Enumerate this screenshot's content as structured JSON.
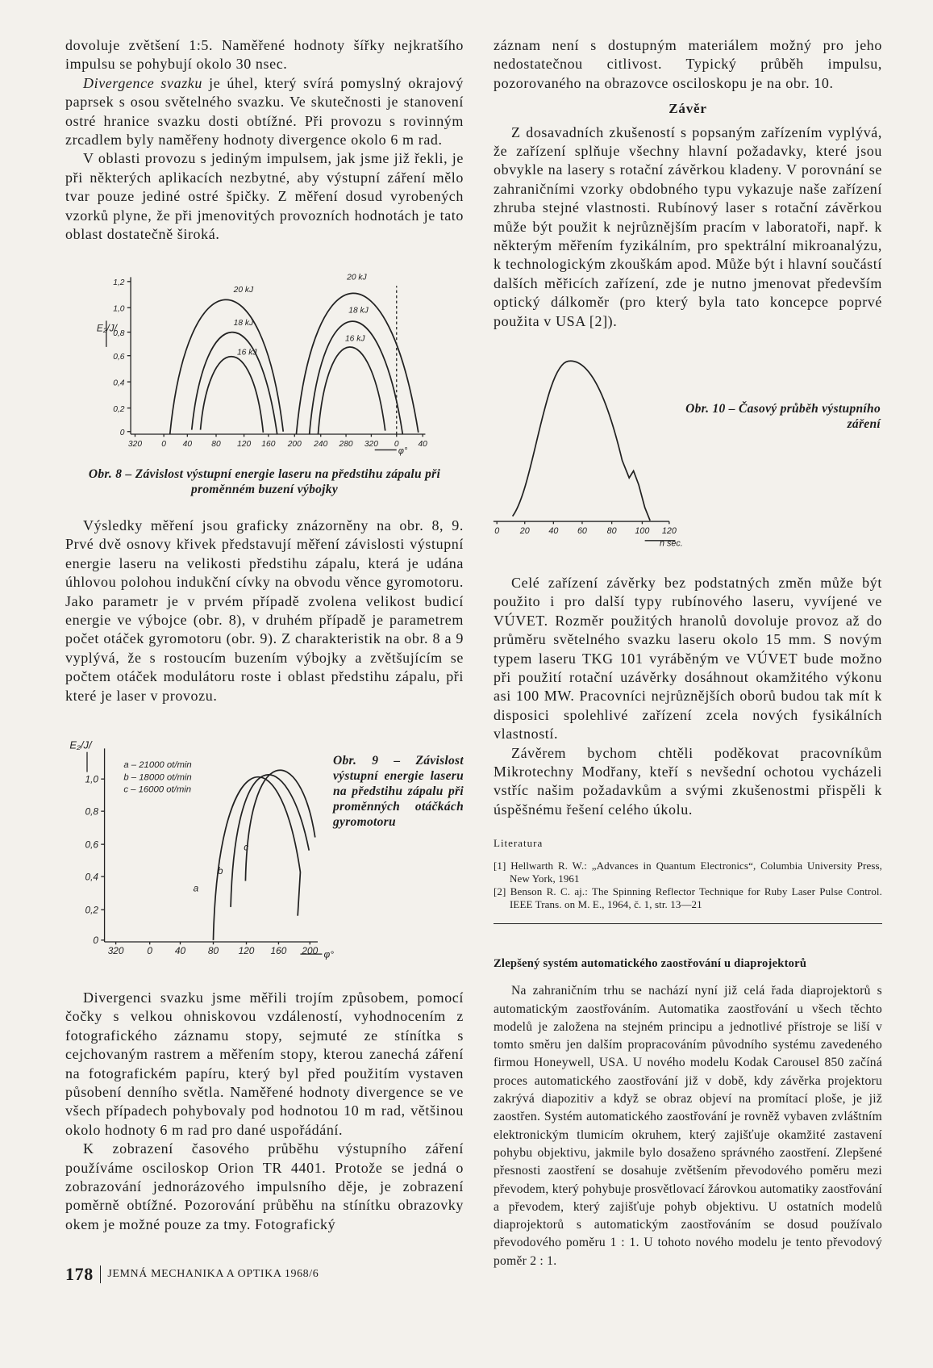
{
  "left": {
    "p1": "dovoluje zvětšení 1:5. Naměřené hodnoty šířky nejkratšího impulsu se pohybují okolo 30 nsec.",
    "p2_lead": "Divergence svazku",
    "p2": " je úhel, který svírá pomyslný okrajový paprsek s osou světelného svazku. Ve skutečnosti je stanovení ostré hranice svazku dosti obtížné. Při provozu s rovinným zrcadlem byly naměřeny hodnoty divergence okolo 6 m rad.",
    "p3": "V oblasti provozu s jediným impulsem, jak jsme již řekli, je při některých aplikacích nezbytné, aby výstupní záření mělo tvar pouze jediné ostré špičky. Z měření dosud vyrobených vzorků plyne, že při jmenovitých provozních hodnotách je tato oblast dostatečně široká.",
    "p4": "Výsledky měření jsou graficky znázorněny na obr. 8, 9. Prvé dvě osnovy křivek představují měření závislosti výstupní energie laseru na velikosti předstihu zápalu, která je udána úhlovou polohou indukční cívky na obvodu věnce gyromotoru. Jako parametr je v prvém případě zvolena velikost budicí energie ve výbojce (obr. 8), v druhém případě je parametrem počet otáček gyromotoru (obr. 9). Z charakteristik na obr. 8 a 9 vyplývá, že s rostoucím buzením výbojky a zvětšujícím se počtem otáček modulátoru roste i oblast předstihu zápalu, při které je laser v provozu.",
    "p5": "Divergenci svazku jsme měřili trojím způsobem, pomocí čočky s velkou ohniskovou vzdáleností, vyhodnocením z fotografického záznamu stopy, sejmuté ze stínítka s cejchovaným rastrem a měřením stopy, kterou zanechá záření na fotografickém papíru, který byl před použitím vystaven působení denního světla. Naměřené hodnoty divergence se ve všech případech pohybovaly pod hodnotou 10 m rad, většinou okolo hodnoty 6 m rad pro dané uspořádání.",
    "p6": "K zobrazení časového průběhu výstupního záření používáme osciloskop Orion TR 4401. Protože se jedná o zobrazování jednorázového impulsního děje, je zobrazení poměrně obtížné. Pozorování průběhu na stínítku obrazovky okem je možné pouze za tmy. Fotografický"
  },
  "figure_8": {
    "caption": "Obr. 8 – Závislost výstupní energie laseru na předstihu zápalu při proměnném buzení výbojky",
    "y_label": "E₂/J/",
    "x_label": "φ°",
    "y_ticks": [
      "0",
      "0,2",
      "0,4",
      "0,6",
      "0,8",
      "1,0",
      "1,2"
    ],
    "x_ticks": [
      "320",
      "0",
      "40",
      "80",
      "120",
      "160",
      "200",
      "240",
      "280",
      "320",
      "0",
      "40"
    ],
    "curve_labels": [
      "20 kJ",
      "18 kJ",
      "16 kJ",
      "20 kJ",
      "18 kJ",
      "16 kJ"
    ]
  },
  "figure_9": {
    "caption": "Obr. 9 – Závislost výstupní energie laseru na předstihu zápalu při proměnných otáčkách gyromotoru",
    "y_label": "E₂/J/",
    "x_label": "φ°",
    "y_ticks": [
      "0",
      "0,2",
      "0,4",
      "0,6",
      "0,8",
      "1,0"
    ],
    "x_ticks": [
      "320",
      "0",
      "40",
      "80",
      "120",
      "160",
      "200"
    ],
    "legend": [
      "a – 21000 ot/min",
      "b – 18000 ot/min",
      "c – 16000 ot/min"
    ],
    "curve_labels": [
      "a",
      "b",
      "c"
    ]
  },
  "figure_10": {
    "caption": "Obr. 10 – Časový průběh výstupního záření",
    "x_label": "n sec.",
    "x_ticks": [
      "0",
      "20",
      "40",
      "60",
      "80",
      "100",
      "120"
    ]
  },
  "right": {
    "p1": "záznam není s dostupným materiálem možný pro jeho nedostatečnou citlivost. Typický průběh impulsu, pozorovaného na obrazovce osciloskopu je na obr. 10.",
    "heading": "Závěr",
    "p2": "Z dosavadních zkušeností s popsaným zařízením vyplývá, že zařízení splňuje všechny hlavní požadavky, které jsou obvykle na lasery s rotační závěrkou kladeny. V porovnání se zahraničními vzorky obdobného typu vykazuje naše zařízení zhruba stejné vlastnosti. Rubínový laser s rotační závěrkou může být použit k nejrůznějším pracím v laboratoři, např. k některým měřením fyzikálním, pro spektrální mikroanalýzu, k technologickým zkouškám apod. Může být i hlavní součástí dalších měřicích zařízení, zde je nutno jmenovat především optický dálkoměr (pro který byla tato koncepce poprvé použita v USA [2]).",
    "p3": "Celé zařízení závěrky bez podstatných změn může být použito i pro další typy rubínového laseru, vyvíjené ve VÚVET. Rozměr použitých hranolů dovoluje provoz až do průměru světelného svazku laseru okolo 15 mm. S novým typem laseru TKG 101 vyráběným ve VÚVET bude možno při použití rotační uzávěrky dosáhnout okamžitého výkonu asi 100 MW. Pracovníci nejrůznějších oborů budou tak mít k disposici spolehlivé zařízení zcela nových fysikálních vlastností.",
    "p4": "Závěrem bychom chtěli poděkovat pracovníkům Mikrotechny Modřany, kteří s nevšední ochotou vycházeli vstříc našim požadavkům a svými zkušenostmi přispěli k úspěšnému řešení celého úkolu.",
    "references_title": "Literatura",
    "references": [
      "[1] Hellwarth R. W.: „Advances in Quantum Electronics“, Columbia University Press, New York, 1961",
      "[2] Benson R. C. aj.: The Spinning Reflector Technique for Ruby Laser Pulse Control. IEEE Trans. on M. E., 1964, č. 1, str. 13—21"
    ]
  },
  "article": {
    "title": "Zlepšený systém automatického zaostřování u diaprojektorů",
    "body": "Na zahraničním trhu se nachází nyní již celá řada diaprojektorů s automatickým zaostřováním. Automatika zaostřování u všech těchto modelů je založena na stejném principu a jednotlivé přístroje se liší v tomto směru jen dalším propracováním původního systému zavedeného firmou Honeywell, USA. U nového modelu Kodak Carousel 850 začíná proces automatického zaostřování již v době, kdy závěrka projektoru zakrývá diapozitiv a když se obraz objeví na promítací ploše, je již zaostřen. Systém automatického zaostřování je rovněž vybaven zvláštním elektronickým tlumicím okruhem, který zajišťuje okamžité zastavení pohybu objektivu, jakmile bylo dosaženo správného zaostření. Zlepšené přesnosti zaostření se dosahuje zvětšením převodového poměru mezi převodem, který pohybuje prosvětlovací žárovkou automatiky zaostřování a převodem, který zajišťuje pohyb objektivu. U ostatních modelů diaprojektorů s automatickým zaostřováním se dosud používalo převodového poměru 1 : 1. U tohoto nového modelu je tento převodový poměr 2 : 1."
  },
  "footer": {
    "page_number": "178",
    "journal": "JEMNÁ MECHANIKA A OPTIKA 1968/6"
  }
}
